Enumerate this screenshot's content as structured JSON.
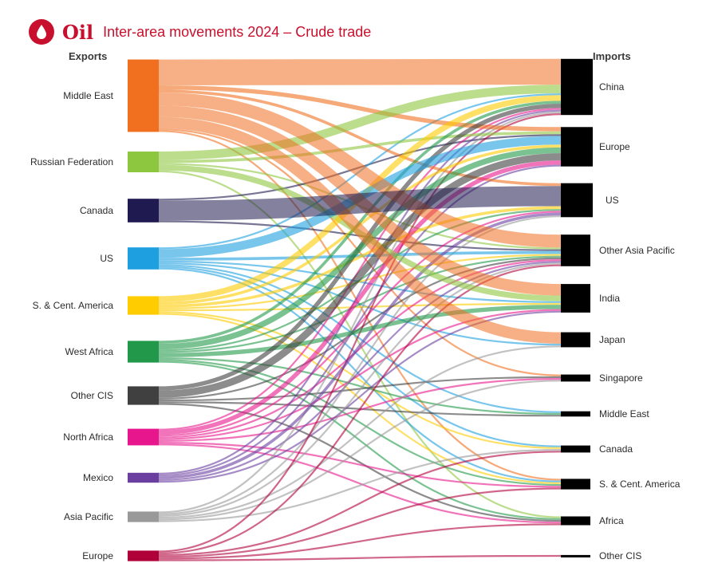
{
  "header": {
    "section": "Oil",
    "title": "Inter-area movements 2024 – Crude trade",
    "icon": "oil-drop-icon",
    "accent": "#c8102e"
  },
  "columns": {
    "left": "Exports",
    "right": "Imports"
  },
  "exporters": [
    {
      "label": "Middle East",
      "color": "#f07020"
    },
    {
      "label": "Russian Federation",
      "color": "#8dc63f"
    },
    {
      "label": "Canada",
      "color": "#1f1a4f"
    },
    {
      "label": "US",
      "color": "#1ea0e0"
    },
    {
      "label": "S. & Cent. America",
      "color": "#ffcc00"
    },
    {
      "label": "West Africa",
      "color": "#22994a"
    },
    {
      "label": "Other CIS",
      "color": "#404040"
    },
    {
      "label": "North Africa",
      "color": "#e8168c"
    },
    {
      "label": "Mexico",
      "color": "#6b3fa0"
    },
    {
      "label": "Asia Pacific",
      "color": "#999999"
    },
    {
      "label": "Europe",
      "color": "#b0003a"
    }
  ],
  "importers": [
    {
      "label": "China"
    },
    {
      "label": "Europe"
    },
    {
      "label": "US"
    },
    {
      "label": "Other Asia Pacific"
    },
    {
      "label": "India"
    },
    {
      "label": "Japan"
    },
    {
      "label": "Singapore"
    },
    {
      "label": "Middle East"
    },
    {
      "label": "Canada"
    },
    {
      "label": "S. & Cent. America"
    },
    {
      "label": "Africa"
    },
    {
      "label": "Other CIS"
    }
  ],
  "flows": [
    [
      0,
      0,
      18
    ],
    [
      0,
      3,
      9
    ],
    [
      0,
      4,
      8
    ],
    [
      0,
      5,
      8
    ],
    [
      0,
      1,
      3
    ],
    [
      0,
      2,
      2
    ],
    [
      0,
      6,
      1
    ],
    [
      0,
      9,
      1
    ],
    [
      1,
      0,
      6
    ],
    [
      1,
      4,
      4
    ],
    [
      1,
      1,
      2
    ],
    [
      1,
      3,
      1
    ],
    [
      1,
      10,
      1
    ],
    [
      2,
      2,
      14
    ],
    [
      2,
      1,
      1
    ],
    [
      2,
      3,
      1
    ],
    [
      3,
      1,
      6
    ],
    [
      3,
      3,
      2
    ],
    [
      3,
      0,
      1
    ],
    [
      3,
      4,
      1
    ],
    [
      3,
      5,
      1
    ],
    [
      3,
      7,
      1
    ],
    [
      3,
      8,
      1
    ],
    [
      3,
      9,
      1
    ],
    [
      4,
      0,
      4
    ],
    [
      4,
      2,
      2
    ],
    [
      4,
      1,
      2
    ],
    [
      4,
      4,
      1
    ],
    [
      4,
      3,
      1
    ],
    [
      4,
      8,
      1
    ],
    [
      4,
      9,
      1
    ],
    [
      5,
      1,
      4
    ],
    [
      5,
      4,
      3
    ],
    [
      5,
      0,
      2
    ],
    [
      5,
      3,
      1
    ],
    [
      5,
      2,
      1
    ],
    [
      5,
      7,
      1
    ],
    [
      5,
      10,
      1
    ],
    [
      5,
      9,
      1
    ],
    [
      6,
      1,
      5
    ],
    [
      6,
      0,
      3
    ],
    [
      6,
      3,
      1
    ],
    [
      6,
      7,
      1
    ],
    [
      6,
      10,
      1
    ],
    [
      6,
      6,
      1
    ],
    [
      7,
      1,
      3
    ],
    [
      7,
      0,
      1
    ],
    [
      7,
      4,
      1
    ],
    [
      7,
      3,
      1
    ],
    [
      7,
      2,
      1
    ],
    [
      7,
      10,
      1
    ],
    [
      7,
      9,
      1
    ],
    [
      7,
      6,
      1
    ],
    [
      8,
      2,
      2
    ],
    [
      8,
      1,
      1
    ],
    [
      8,
      0,
      1
    ],
    [
      8,
      3,
      1
    ],
    [
      8,
      4,
      1
    ],
    [
      9,
      0,
      1
    ],
    [
      9,
      3,
      1
    ],
    [
      9,
      5,
      1
    ],
    [
      9,
      6,
      1
    ],
    [
      9,
      2,
      1
    ],
    [
      9,
      8,
      1
    ],
    [
      10,
      0,
      1
    ],
    [
      10,
      3,
      1
    ],
    [
      10,
      10,
      1
    ],
    [
      10,
      9,
      1
    ],
    [
      10,
      8,
      1
    ],
    [
      10,
      11,
      1
    ]
  ]
}
